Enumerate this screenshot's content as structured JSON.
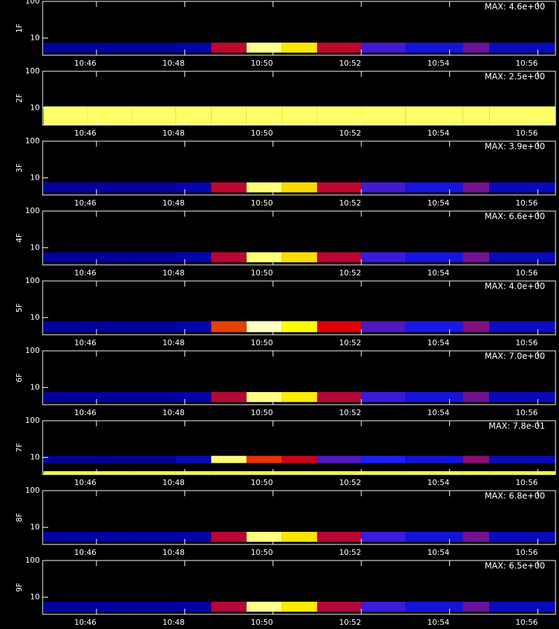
{
  "chart_data": [
    {
      "type": "heatmap",
      "ylabel": "1F",
      "annotation": "MAX: 4.6e+00",
      "max": 4.6,
      "xlim": [
        44.78,
        56.4
      ],
      "ylim": [
        3.4,
        100
      ],
      "log_y": true,
      "yticks": [
        10,
        100
      ],
      "xticks": [
        {
          "value": 46,
          "label": "10:46"
        },
        {
          "value": 48,
          "label": "10:48"
        },
        {
          "value": 50,
          "label": "10:50"
        },
        {
          "value": 52,
          "label": "10:52"
        },
        {
          "value": 54,
          "label": "10:54"
        },
        {
          "value": 56,
          "label": "10:56"
        }
      ],
      "colormap": [
        "#000000",
        "#0000a0",
        "#2020ff",
        "#e00000",
        "#ffff00",
        "#ffffff"
      ],
      "bins": [
        44.8,
        45.8,
        46.8,
        47.8,
        48.6,
        49.4,
        50.2,
        51,
        52,
        53,
        54.3,
        54.9,
        56.4
      ],
      "bands": [
        {
          "range": [
            4,
            7.5
          ],
          "values": [
            0.9,
            0.9,
            0.9,
            1.0,
            2.6,
            4.2,
            3.6,
            2.6,
            2.0,
            1.5,
            2.2,
            1.2
          ]
        }
      ]
    },
    {
      "type": "heatmap",
      "ylabel": "2F",
      "annotation": "MAX: 2.5e+00",
      "max": 2.5,
      "xlim": [
        44.78,
        56.4
      ],
      "ylim": [
        3.4,
        100
      ],
      "log_y": true,
      "yticks": [
        10,
        100
      ],
      "xticks": [
        {
          "value": 46,
          "label": "10:46"
        },
        {
          "value": 48,
          "label": "10:48"
        },
        {
          "value": 50,
          "label": "10:50"
        },
        {
          "value": 52,
          "label": "10:52"
        },
        {
          "value": 54,
          "label": "10:54"
        },
        {
          "value": 56,
          "label": "10:56"
        }
      ],
      "colormap": [
        "#000000",
        "#0000a0",
        "#2020ff",
        "#e00000",
        "#ffff00",
        "#ffffff"
      ],
      "bins": [
        44.8,
        45.8,
        46.8,
        47.8,
        48.6,
        49.4,
        50.2,
        51,
        52,
        53,
        54.3,
        54.9,
        56.4
      ],
      "bands": [
        {
          "range": [
            3.4,
            11
          ],
          "values": [
            2.2,
            2.2,
            2.2,
            2.2,
            2.2,
            2.2,
            2.2,
            2.2,
            2.2,
            2.2,
            2.2,
            2.2
          ]
        }
      ]
    },
    {
      "type": "heatmap",
      "ylabel": "3F",
      "annotation": "MAX: 3.9e+00",
      "max": 3.9,
      "xlim": [
        44.78,
        56.4
      ],
      "ylim": [
        3.4,
        100
      ],
      "log_y": true,
      "yticks": [
        10,
        100
      ],
      "xticks": [
        {
          "value": 46,
          "label": "10:46"
        },
        {
          "value": 48,
          "label": "10:48"
        },
        {
          "value": 50,
          "label": "10:50"
        },
        {
          "value": 52,
          "label": "10:52"
        },
        {
          "value": 54,
          "label": "10:54"
        },
        {
          "value": 56,
          "label": "10:56"
        }
      ],
      "colormap": [
        "#000000",
        "#0000a0",
        "#2020ff",
        "#e00000",
        "#ffff00",
        "#ffffff"
      ],
      "bins": [
        44.8,
        45.8,
        46.8,
        47.8,
        48.6,
        49.4,
        50.2,
        51,
        52,
        53,
        54.3,
        54.9,
        56.4
      ],
      "bands": [
        {
          "range": [
            4,
            7.5
          ],
          "values": [
            0.8,
            0.8,
            0.8,
            0.9,
            2.2,
            3.5,
            3.0,
            2.2,
            1.7,
            1.3,
            1.9,
            1.0
          ]
        }
      ]
    },
    {
      "type": "heatmap",
      "ylabel": "4F",
      "annotation": "MAX: 6.6e+00",
      "max": 6.6,
      "xlim": [
        44.78,
        56.4
      ],
      "ylim": [
        3.4,
        100
      ],
      "log_y": true,
      "yticks": [
        10,
        100
      ],
      "xticks": [
        {
          "value": 46,
          "label": "10:46"
        },
        {
          "value": 48,
          "label": "10:48"
        },
        {
          "value": 50,
          "label": "10:50"
        },
        {
          "value": 52,
          "label": "10:52"
        },
        {
          "value": 54,
          "label": "10:54"
        },
        {
          "value": 56,
          "label": "10:56"
        }
      ],
      "colormap": [
        "#000000",
        "#0000a0",
        "#2020ff",
        "#e00000",
        "#ffff00",
        "#ffffff"
      ],
      "bins": [
        44.8,
        45.8,
        46.8,
        47.8,
        48.6,
        49.4,
        50.2,
        51,
        52,
        53,
        54.3,
        54.9,
        56.4
      ],
      "bands": [
        {
          "range": [
            4,
            7.5
          ],
          "values": [
            1.3,
            1.3,
            1.3,
            1.5,
            3.7,
            5.9,
            5.1,
            3.7,
            2.8,
            2.2,
            3.2,
            1.7
          ]
        }
      ]
    },
    {
      "type": "heatmap",
      "ylabel": "5F",
      "annotation": "MAX: 4.0e+00",
      "max": 4.0,
      "xlim": [
        44.78,
        56.4
      ],
      "ylim": [
        3.4,
        100
      ],
      "log_y": true,
      "yticks": [
        10,
        100
      ],
      "xticks": [
        {
          "value": 46,
          "label": "10:46"
        },
        {
          "value": 48,
          "label": "10:48"
        },
        {
          "value": 50,
          "label": "10:50"
        },
        {
          "value": 52,
          "label": "10:52"
        },
        {
          "value": 54,
          "label": "10:54"
        },
        {
          "value": 56,
          "label": "10:56"
        }
      ],
      "colormap": [
        "#000000",
        "#0000a0",
        "#2020ff",
        "#e00000",
        "#ffff00",
        "#ffffff"
      ],
      "bins": [
        44.8,
        45.8,
        46.8,
        47.8,
        48.6,
        49.4,
        50.2,
        51,
        52,
        53,
        54.3,
        54.9,
        56.4
      ],
      "bands": [
        {
          "range": [
            4,
            8
          ],
          "values": [
            0.8,
            0.8,
            0.8,
            0.9,
            2.6,
            3.8,
            3.2,
            2.4,
            1.8,
            1.4,
            2.0,
            1.1
          ]
        }
      ]
    },
    {
      "type": "heatmap",
      "ylabel": "6F",
      "annotation": "MAX: 7.0e+00",
      "max": 7.0,
      "xlim": [
        44.78,
        56.4
      ],
      "ylim": [
        3.4,
        100
      ],
      "log_y": true,
      "yticks": [
        10,
        100
      ],
      "xticks": [
        {
          "value": 46,
          "label": "10:46"
        },
        {
          "value": 48,
          "label": "10:48"
        },
        {
          "value": 50,
          "label": "10:50"
        },
        {
          "value": 52,
          "label": "10:52"
        },
        {
          "value": 54,
          "label": "10:54"
        },
        {
          "value": 56,
          "label": "10:56"
        }
      ],
      "colormap": [
        "#000000",
        "#0000a0",
        "#2020ff",
        "#e00000",
        "#ffff00",
        "#ffffff"
      ],
      "bins": [
        44.8,
        45.8,
        46.8,
        47.8,
        48.6,
        49.4,
        50.2,
        51,
        52,
        53,
        54.3,
        54.9,
        56.4
      ],
      "bands": [
        {
          "range": [
            4,
            7.5
          ],
          "values": [
            1.4,
            1.4,
            1.4,
            1.5,
            3.9,
            6.3,
            5.5,
            3.9,
            3.0,
            2.3,
            3.4,
            1.8
          ]
        }
      ]
    },
    {
      "type": "heatmap",
      "ylabel": "7F",
      "annotation": "MAX: 7.8e-01",
      "max": 0.78,
      "xlim": [
        44.78,
        56.4
      ],
      "ylim": [
        3.4,
        100
      ],
      "log_y": true,
      "yticks": [
        10,
        100
      ],
      "xticks": [
        {
          "value": 46,
          "label": "10:46"
        },
        {
          "value": 48,
          "label": "10:48"
        },
        {
          "value": 50,
          "label": "10:50"
        },
        {
          "value": 52,
          "label": "10:52"
        },
        {
          "value": 54,
          "label": "10:54"
        },
        {
          "value": 56,
          "label": "10:56"
        }
      ],
      "colormap": [
        "#000000",
        "#0000a0",
        "#2020ff",
        "#e00000",
        "#ffff00",
        "#ffffff"
      ],
      "bins": [
        44.8,
        45.8,
        46.8,
        47.8,
        48.6,
        49.4,
        50.2,
        51,
        52,
        53,
        54.3,
        54.9,
        56.4
      ],
      "bands": [
        {
          "range": [
            3.4,
            4.2
          ],
          "values": [
            0.65,
            0.65,
            0.65,
            0.65,
            0.65,
            0.65,
            0.65,
            0.65,
            0.65,
            0.65,
            0.65,
            0.65
          ]
        },
        {
          "range": [
            7,
            11
          ],
          "values": [
            0.15,
            0.15,
            0.15,
            0.2,
            0.7,
            0.5,
            0.45,
            0.35,
            0.3,
            0.25,
            0.4,
            0.2
          ]
        }
      ]
    },
    {
      "type": "heatmap",
      "ylabel": "8F",
      "annotation": "MAX: 6.8e+00",
      "max": 6.8,
      "xlim": [
        44.78,
        56.4
      ],
      "ylim": [
        3.4,
        100
      ],
      "log_y": true,
      "yticks": [
        10,
        100
      ],
      "xticks": [
        {
          "value": 46,
          "label": "10:46"
        },
        {
          "value": 48,
          "label": "10:48"
        },
        {
          "value": 50,
          "label": "10:50"
        },
        {
          "value": 52,
          "label": "10:52"
        },
        {
          "value": 54,
          "label": "10:54"
        },
        {
          "value": 56,
          "label": "10:56"
        }
      ],
      "colormap": [
        "#000000",
        "#0000a0",
        "#2020ff",
        "#e00000",
        "#ffff00",
        "#ffffff"
      ],
      "bins": [
        44.8,
        45.8,
        46.8,
        47.8,
        48.6,
        49.4,
        50.2,
        51,
        52,
        53,
        54.3,
        54.9,
        56.4
      ],
      "bands": [
        {
          "range": [
            4,
            7.5
          ],
          "values": [
            1.4,
            1.4,
            1.4,
            1.5,
            3.8,
            6.1,
            5.3,
            3.8,
            2.9,
            2.2,
            3.3,
            1.8
          ]
        }
      ]
    },
    {
      "type": "heatmap",
      "ylabel": "9F",
      "annotation": "MAX: 6.5e+00",
      "max": 6.5,
      "xlim": [
        44.78,
        56.4
      ],
      "ylim": [
        3.4,
        100
      ],
      "log_y": true,
      "yticks": [
        10,
        100
      ],
      "xticks": [
        {
          "value": 46,
          "label": "10:46"
        },
        {
          "value": 48,
          "label": "10:48"
        },
        {
          "value": 50,
          "label": "10:50"
        },
        {
          "value": 52,
          "label": "10:52"
        },
        {
          "value": 54,
          "label": "10:54"
        },
        {
          "value": 56,
          "label": "10:56"
        }
      ],
      "colormap": [
        "#000000",
        "#0000a0",
        "#2020ff",
        "#e00000",
        "#ffff00",
        "#ffffff"
      ],
      "bins": [
        44.8,
        45.8,
        46.8,
        47.8,
        48.6,
        49.4,
        50.2,
        51,
        52,
        53,
        54.3,
        54.9,
        56.4
      ],
      "bands": [
        {
          "range": [
            4,
            7.5
          ],
          "values": [
            1.3,
            1.3,
            1.3,
            1.4,
            3.6,
            5.9,
            5.1,
            3.6,
            2.8,
            2.1,
            3.1,
            1.7
          ]
        }
      ]
    }
  ]
}
